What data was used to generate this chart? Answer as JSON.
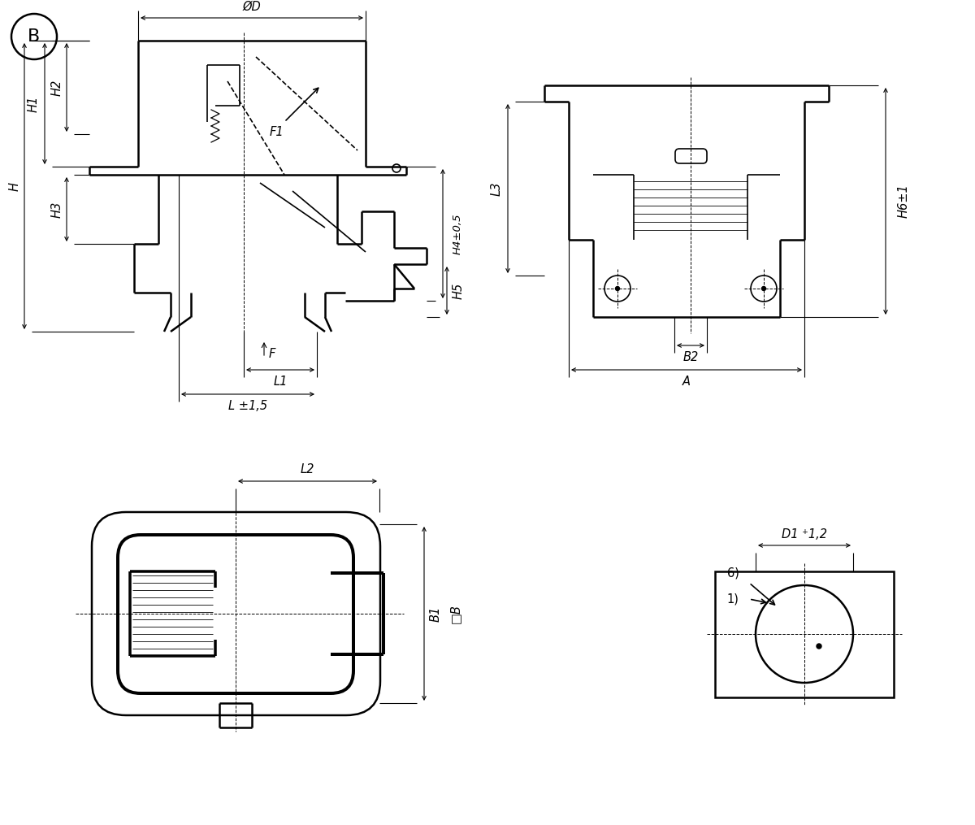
{
  "bg_color": "#ffffff",
  "lc": "#000000",
  "lw_thick": 1.8,
  "lw_med": 1.2,
  "lw_dim": 0.8,
  "lw_ctr": 0.7,
  "fs": 10.5,
  "labels": {
    "B_marker": "B",
    "OD": "ØD",
    "H1": "H1",
    "H2": "H2",
    "H3": "H3",
    "H": "H",
    "H4": "H4±0,5",
    "H5": "H5",
    "H6": "H6±1",
    "F1": "F1",
    "F": "F",
    "L": "L ±1,5",
    "L1": "L1",
    "L2": "L2",
    "L3": "L3",
    "B1": "B1",
    "B2": "B2",
    "sqB": "□B",
    "A": "A",
    "D1": "D1 ⁺1,2",
    "n6": "6)",
    "n1": "1)"
  }
}
